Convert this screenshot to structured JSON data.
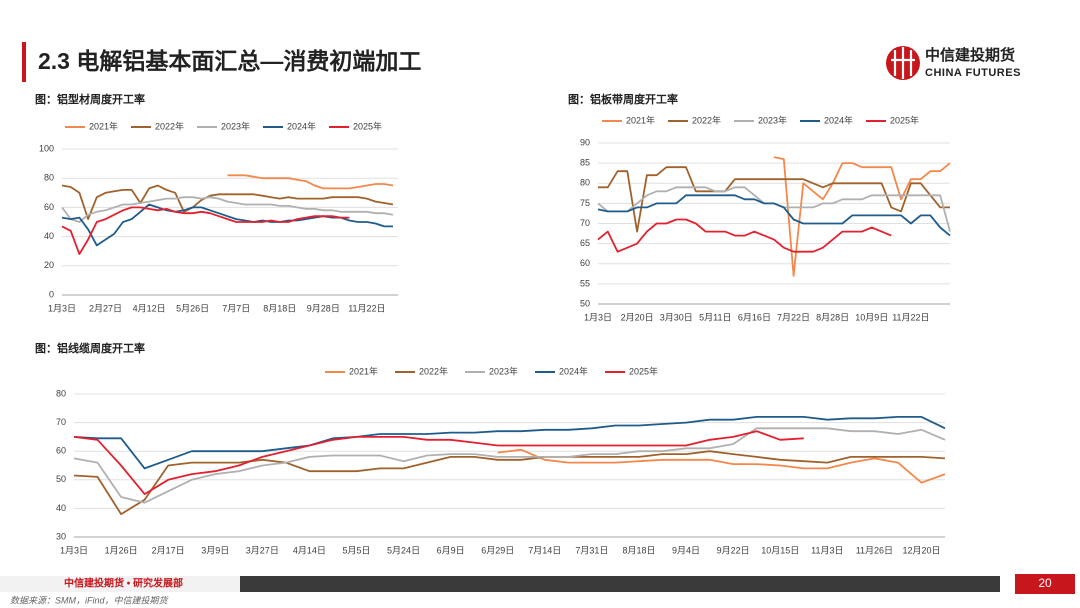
{
  "header": {
    "title": "2.3 电解铝基本面汇总—消费初端加工"
  },
  "logo": {
    "name": "中信建投期货",
    "en": "CHINA FUTURES"
  },
  "footer": {
    "org": "中信建投期货 • 研究发展部",
    "page": "20",
    "source": "数据来源：SMM，iFind，中信建投期货"
  },
  "chart_data": [
    {
      "type": "line",
      "title": "图：铝型材周度开工率",
      "legend": "top",
      "grid": true,
      "categories": [
        "1月3日",
        null,
        null,
        null,
        null,
        "2月27日",
        null,
        null,
        null,
        null,
        "4月12日",
        null,
        null,
        null,
        null,
        "5月26日",
        null,
        null,
        null,
        null,
        "7月7日",
        null,
        null,
        null,
        null,
        "8月18日",
        null,
        null,
        null,
        null,
        "9月28日",
        null,
        null,
        null,
        null,
        "11月22日",
        null,
        null,
        null
      ],
      "ylim": [
        0,
        100
      ],
      "yticks": [
        0,
        20,
        40,
        60,
        80,
        100
      ],
      "series": [
        {
          "name": "2021年",
          "color": "#F4874B",
          "values": [
            null,
            null,
            null,
            null,
            null,
            null,
            null,
            null,
            null,
            null,
            null,
            null,
            null,
            null,
            null,
            null,
            null,
            null,
            null,
            82,
            82,
            82,
            81,
            80,
            80,
            80,
            80,
            79,
            78,
            75,
            73,
            73,
            73,
            73,
            74,
            75,
            76,
            76,
            75
          ]
        },
        {
          "name": "2022年",
          "color": "#A0622D",
          "values": [
            75,
            74,
            70,
            52,
            67,
            70,
            71,
            72,
            72,
            63,
            73,
            75,
            72,
            70,
            57,
            60,
            65,
            68,
            69,
            69,
            69,
            69,
            69,
            68,
            67,
            66,
            67,
            66,
            66,
            66,
            66,
            67,
            67,
            67,
            67,
            66,
            64,
            63,
            62
          ]
        },
        {
          "name": "2023年",
          "color": "#B0B0B0",
          "values": [
            60,
            52,
            50,
            55,
            57,
            58,
            60,
            62,
            62,
            63,
            64,
            65,
            66,
            66,
            67,
            67,
            66,
            67,
            66,
            64,
            63,
            62,
            62,
            62,
            62,
            61,
            61,
            60,
            59,
            59,
            58,
            58,
            57,
            57,
            57,
            57,
            56,
            56,
            55
          ]
        },
        {
          "name": "2024年",
          "color": "#1F5C8C",
          "values": [
            53,
            52,
            53,
            45,
            34,
            38,
            42,
            50,
            52,
            57,
            62,
            60,
            58,
            57,
            58,
            60,
            60,
            58,
            56,
            54,
            52,
            51,
            50,
            51,
            50,
            50,
            51,
            51,
            52,
            53,
            54,
            53,
            53,
            51,
            50,
            50,
            49,
            47,
            47
          ]
        },
        {
          "name": "2025年",
          "color": "#E2202F",
          "values": [
            47,
            44,
            28,
            38,
            50,
            52,
            55,
            58,
            60,
            60,
            59,
            58,
            59,
            57,
            56,
            56,
            57,
            56,
            54,
            52,
            50,
            50,
            50,
            50,
            51,
            50,
            50,
            52,
            53,
            54,
            54,
            54,
            53,
            53,
            null,
            null,
            null,
            null,
            null
          ]
        }
      ]
    },
    {
      "type": "line",
      "title": "图：铝板带周度开工率",
      "legend": "top",
      "grid": true,
      "categories": [
        "1月3日",
        null,
        null,
        null,
        "2月20日",
        null,
        null,
        null,
        "3月30日",
        null,
        null,
        null,
        "5月11日",
        null,
        null,
        null,
        "6月16日",
        null,
        null,
        null,
        "7月22日",
        null,
        null,
        null,
        "8月28日",
        null,
        null,
        null,
        "10月9日",
        null,
        null,
        null,
        "11月22日",
        null,
        null,
        null,
        null
      ],
      "ylim": [
        50,
        90
      ],
      "yticks": [
        50,
        55,
        60,
        65,
        70,
        75,
        80,
        85,
        90
      ],
      "series": [
        {
          "name": "2021年",
          "color": "#F4874B",
          "values": [
            null,
            null,
            null,
            null,
            null,
            null,
            null,
            null,
            null,
            null,
            null,
            null,
            null,
            null,
            null,
            null,
            null,
            null,
            86.5,
            86,
            57,
            80,
            78,
            76,
            80,
            85,
            85,
            84,
            84,
            84,
            84,
            76,
            81,
            81,
            83,
            83,
            85
          ]
        },
        {
          "name": "2022年",
          "color": "#A0622D",
          "values": [
            79,
            79,
            83,
            83,
            68,
            82,
            82,
            84,
            84,
            84,
            78,
            78,
            78,
            78,
            81,
            81,
            81,
            81,
            81,
            81,
            81,
            81,
            80,
            79,
            80,
            80,
            80,
            80,
            80,
            80,
            74,
            73,
            80,
            80,
            77,
            74,
            74
          ]
        },
        {
          "name": "2023年",
          "color": "#B0B0B0",
          "values": [
            75,
            73,
            73,
            73,
            75,
            77,
            78,
            78,
            79,
            79,
            79,
            79,
            78,
            78,
            79,
            79,
            77,
            75,
            75,
            74,
            74,
            74,
            74,
            75,
            75,
            76,
            76,
            76,
            77,
            77,
            77,
            77,
            77,
            77,
            77,
            77,
            68
          ]
        },
        {
          "name": "2024年",
          "color": "#1F5C8C",
          "values": [
            73.5,
            73,
            73,
            73,
            74,
            74,
            75,
            75,
            75,
            77,
            77,
            77,
            77,
            77,
            77,
            76,
            76,
            75,
            75,
            74,
            71,
            70,
            70,
            70,
            70,
            70,
            72,
            72,
            72,
            72,
            72,
            72,
            70,
            72,
            72,
            69,
            67
          ]
        },
        {
          "name": "2025年",
          "color": "#E2202F",
          "values": [
            66,
            68,
            63,
            64,
            65,
            68,
            70,
            70,
            71,
            71,
            70,
            68,
            68,
            68,
            67,
            67,
            68,
            67,
            66,
            64,
            63,
            63,
            63,
            64,
            66,
            68,
            68,
            68,
            69,
            68,
            67,
            null,
            null,
            null,
            null,
            null,
            null
          ]
        }
      ]
    },
    {
      "type": "line",
      "title": "图：铝线缆周度开工率",
      "legend": "top",
      "grid": true,
      "categories": [
        "1月3日",
        null,
        "1月26日",
        null,
        "2月17日",
        null,
        "3月9日",
        null,
        "3月27日",
        null,
        "4月14日",
        null,
        "5月5日",
        null,
        "5月24日",
        null,
        "6月9日",
        null,
        "6月29日",
        null,
        "7月14日",
        null,
        "7月31日",
        null,
        "8月18日",
        null,
        "9月4日",
        null,
        "9月22日",
        null,
        "10月15日",
        null,
        "11月3日",
        null,
        "11月26日",
        null,
        "12月20日",
        null
      ],
      "ylim": [
        30,
        80
      ],
      "yticks": [
        30,
        40,
        50,
        60,
        70,
        80
      ],
      "series": [
        {
          "name": "2021年",
          "color": "#F4874B",
          "values": [
            null,
            null,
            null,
            null,
            null,
            null,
            null,
            null,
            null,
            null,
            null,
            null,
            null,
            null,
            null,
            null,
            null,
            null,
            59.5,
            60.5,
            57,
            56,
            56,
            56,
            56.5,
            57,
            57,
            57,
            55.5,
            55.5,
            55,
            54,
            54,
            56,
            57.5,
            56,
            49,
            52
          ]
        },
        {
          "name": "2022年",
          "color": "#A0622D",
          "values": [
            51.5,
            51,
            38,
            43,
            55,
            56,
            56,
            56,
            57,
            56,
            53,
            53,
            53,
            54,
            54,
            56,
            58,
            58,
            57,
            57,
            58,
            58,
            58,
            58,
            58,
            59,
            59,
            60,
            59,
            58,
            57,
            56.5,
            56,
            58,
            58,
            58,
            58,
            57.5
          ]
        },
        {
          "name": "2023年",
          "color": "#B0B0B0",
          "values": [
            57.5,
            56,
            44,
            42,
            46,
            50,
            52,
            53,
            55,
            56,
            58,
            58.5,
            58.5,
            58.5,
            56.5,
            58.5,
            59,
            59,
            58,
            58,
            58,
            58,
            59,
            59,
            60,
            60,
            61,
            61,
            62.5,
            68,
            68,
            68,
            68,
            67,
            67,
            66,
            67.5,
            64
          ]
        },
        {
          "name": "2024年",
          "color": "#1F5C8C",
          "values": [
            65,
            64.5,
            64.5,
            54,
            57,
            60,
            60,
            60,
            60,
            61,
            62,
            64.5,
            65,
            66,
            66,
            66,
            66.5,
            66.5,
            67,
            67,
            67.5,
            67.5,
            68,
            69,
            69,
            69.5,
            70,
            71,
            71,
            72,
            72,
            72,
            71,
            71.5,
            71.5,
            72,
            72,
            68
          ]
        },
        {
          "name": "2025年",
          "color": "#E2202F",
          "values": [
            65,
            64,
            55,
            45,
            50,
            52,
            53,
            55,
            58,
            60,
            62,
            64,
            65,
            65,
            65,
            64,
            64,
            63,
            62,
            62,
            62,
            62,
            62,
            62,
            62,
            62,
            62,
            64,
            65,
            67,
            64,
            64.5,
            null,
            null,
            null,
            null,
            null,
            null
          ]
        }
      ]
    }
  ]
}
